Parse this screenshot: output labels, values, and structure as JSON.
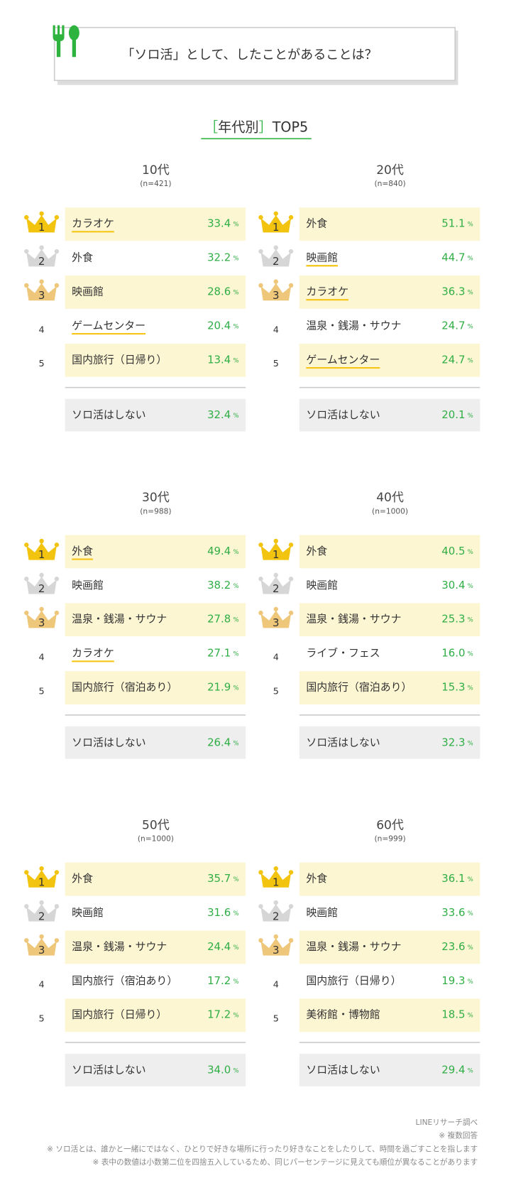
{
  "title": "「ソロ活」として、したことがあることは？",
  "subtitle": {
    "bracket_open": "［",
    "label": "年代別",
    "bracket_close": "］",
    "suffix": "TOP5"
  },
  "unit": "%",
  "groups": [
    {
      "age": "10代",
      "n": "(n=421)",
      "items": [
        {
          "rank": 1,
          "label": "カラオケ",
          "value": "33.4",
          "underline": true
        },
        {
          "rank": 2,
          "label": "外食",
          "value": "32.2",
          "underline": false
        },
        {
          "rank": 3,
          "label": "映画館",
          "value": "28.6",
          "underline": false
        },
        {
          "rank": 4,
          "label": "ゲームセンター",
          "value": "20.4",
          "underline": true
        },
        {
          "rank": 5,
          "label": "国内旅行（日帰り）",
          "value": "13.4",
          "underline": false
        }
      ],
      "none": {
        "label": "ソロ活はしない",
        "value": "32.4"
      }
    },
    {
      "age": "20代",
      "n": "(n=840)",
      "items": [
        {
          "rank": 1,
          "label": "外食",
          "value": "51.1",
          "underline": false
        },
        {
          "rank": 2,
          "label": "映画館",
          "value": "44.7",
          "underline": true
        },
        {
          "rank": 3,
          "label": "カラオケ",
          "value": "36.3",
          "underline": true
        },
        {
          "rank": 4,
          "label": "温泉・銭湯・サウナ",
          "value": "24.7",
          "underline": false
        },
        {
          "rank": 5,
          "label": "ゲームセンター",
          "value": "24.7",
          "underline": true
        }
      ],
      "none": {
        "label": "ソロ活はしない",
        "value": "20.1"
      }
    },
    {
      "age": "30代",
      "n": "(n=988)",
      "items": [
        {
          "rank": 1,
          "label": "外食",
          "value": "49.4",
          "underline": true
        },
        {
          "rank": 2,
          "label": "映画館",
          "value": "38.2",
          "underline": false
        },
        {
          "rank": 3,
          "label": "温泉・銭湯・サウナ",
          "value": "27.8",
          "underline": false
        },
        {
          "rank": 4,
          "label": "カラオケ",
          "value": "27.1",
          "underline": true
        },
        {
          "rank": 5,
          "label": "国内旅行（宿泊あり）",
          "value": "21.9",
          "underline": false
        }
      ],
      "none": {
        "label": "ソロ活はしない",
        "value": "26.4"
      }
    },
    {
      "age": "40代",
      "n": "(n=1000)",
      "items": [
        {
          "rank": 1,
          "label": "外食",
          "value": "40.5",
          "underline": false
        },
        {
          "rank": 2,
          "label": "映画館",
          "value": "30.4",
          "underline": false
        },
        {
          "rank": 3,
          "label": "温泉・銭湯・サウナ",
          "value": "25.3",
          "underline": false
        },
        {
          "rank": 4,
          "label": "ライブ・フェス",
          "value": "16.0",
          "underline": false
        },
        {
          "rank": 5,
          "label": "国内旅行（宿泊あり）",
          "value": "15.3",
          "underline": false
        }
      ],
      "none": {
        "label": "ソロ活はしない",
        "value": "32.3"
      }
    },
    {
      "age": "50代",
      "n": "(n=1000)",
      "items": [
        {
          "rank": 1,
          "label": "外食",
          "value": "35.7",
          "underline": false
        },
        {
          "rank": 2,
          "label": "映画館",
          "value": "31.6",
          "underline": false
        },
        {
          "rank": 3,
          "label": "温泉・銭湯・サウナ",
          "value": "24.4",
          "underline": false
        },
        {
          "rank": 4,
          "label": "国内旅行（宿泊あり）",
          "value": "17.2",
          "underline": false
        },
        {
          "rank": 5,
          "label": "国内旅行（日帰り）",
          "value": "17.2",
          "underline": false
        }
      ],
      "none": {
        "label": "ソロ活はしない",
        "value": "34.0"
      }
    },
    {
      "age": "60代",
      "n": "(n=999)",
      "items": [
        {
          "rank": 1,
          "label": "外食",
          "value": "36.1",
          "underline": false
        },
        {
          "rank": 2,
          "label": "映画館",
          "value": "33.6",
          "underline": false
        },
        {
          "rank": 3,
          "label": "温泉・銭湯・サウナ",
          "value": "23.6",
          "underline": false
        },
        {
          "rank": 4,
          "label": "国内旅行（日帰り）",
          "value": "19.3",
          "underline": false
        },
        {
          "rank": 5,
          "label": "美術館・博物館",
          "value": "18.5",
          "underline": false
        }
      ],
      "none": {
        "label": "ソロ活はしない",
        "value": "29.4"
      }
    }
  ],
  "notes": [
    "LINEリサーチ調べ",
    "※ 複数回答",
    "※ ソロ活とは、誰かと一緒にではなく、ひとりで好きな場所に行ったり好きなことをしたりして、時間を過ごすことを指します",
    "※ 表中の数値は小数第二位を四捨五入しているため、同じパーセンテージに見えても順位が異なることがあります"
  ]
}
